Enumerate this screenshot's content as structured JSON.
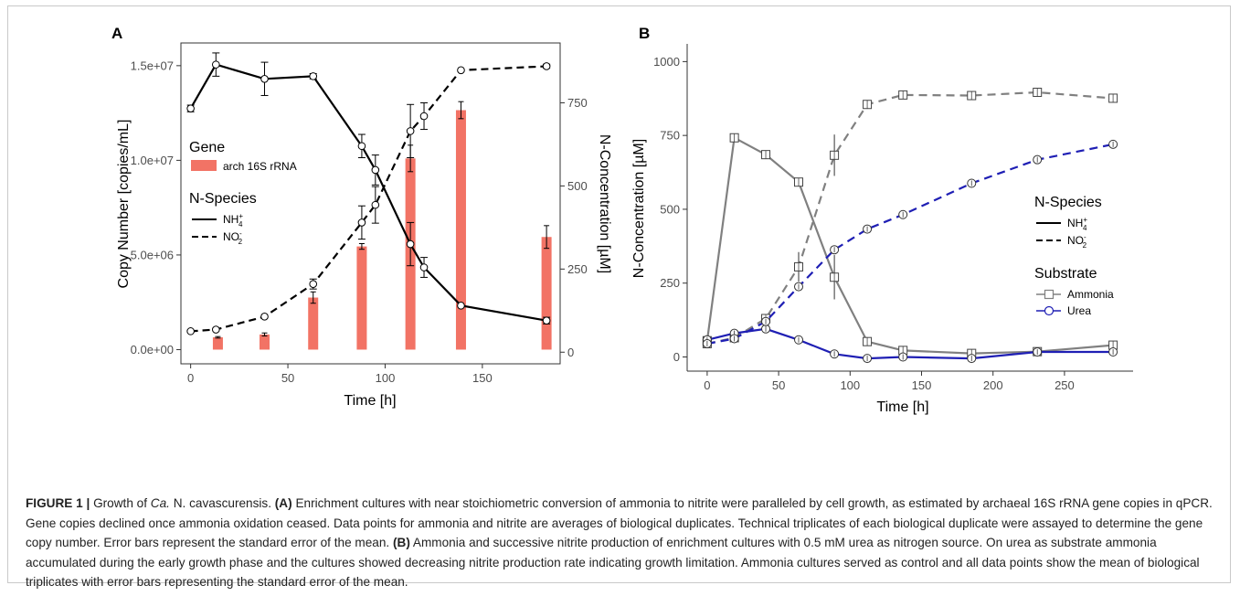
{
  "figure": {
    "caption": {
      "fig_label": "FIGURE 1 |",
      "title_pre": "Growth of ",
      "title_italic": "Ca.",
      "title_post": " N. cavascurensis.",
      "a_label": "(A)",
      "a_text": "Enrichment cultures with near stoichiometric conversion of ammonia to nitrite were paralleled by cell growth, as estimated by archaeal 16S rRNA gene copies in qPCR. Gene copies declined once ammonia oxidation ceased. Data points for ammonia and nitrite are averages of biological duplicates. Technical triplicates of each biological duplicate were assayed to determine the gene copy number. Error bars represent the standard error of the mean.",
      "b_label": "(B)",
      "b_text": "Ammonia and successive nitrite production of enrichment cultures with 0.5 mM urea as nitrogen source. On urea as substrate ammonia accumulated during the early growth phase and the cultures showed decreasing nitrite production rate indicating growth limitation. Ammonia cultures served as control and all data points show the mean of biological triplicates with error bars representing the standard error of the mean."
    }
  },
  "chart_data": [
    {
      "panel_label": "A",
      "type": "bar+line",
      "xlabel": "Time [h]",
      "ylabel_left": "Copy Number [copies/mL]",
      "ylabel_right": "N-Concentration [µM]",
      "xlim": [
        -5,
        190
      ],
      "ylim_left": [
        -750000,
        16200000
      ],
      "ylim_right": [
        -35,
        930
      ],
      "x_ticks": [
        0,
        50,
        100,
        150
      ],
      "y_left_ticks": [
        0,
        5000000,
        10000000,
        15000000
      ],
      "y_left_tick_labels": [
        "0.0e+00",
        "5.0e+06",
        "1.0e+07",
        "1.5e+07"
      ],
      "y_right_ticks": [
        0,
        250,
        500,
        750
      ],
      "legend_gene_title": "Gene",
      "legend_species_title": "N-Species",
      "bars": {
        "name": "arch 16S rRNA",
        "color": "#f27365",
        "x": [
          14,
          38,
          63,
          88,
          113,
          139,
          183
        ],
        "values": [
          650000,
          800000,
          2750000,
          5450000,
          10100000,
          12650000,
          5950000
        ],
        "err": [
          40000,
          80000,
          300000,
          150000,
          700000,
          450000,
          600000
        ]
      },
      "nh4": {
        "name": "NH4+",
        "x": [
          0,
          13,
          38,
          63,
          88,
          95,
          113,
          120,
          139,
          183
        ],
        "y": [
          733,
          865,
          822,
          830,
          620,
          548,
          325,
          255,
          140,
          95
        ],
        "err": [
          10,
          35,
          50,
          8,
          35,
          45,
          65,
          30,
          0,
          10
        ]
      },
      "no2": {
        "name": "NO2-",
        "x": [
          0,
          13,
          38,
          63,
          88,
          95,
          113,
          120,
          139,
          183
        ],
        "y": [
          63,
          68,
          107,
          205,
          390,
          443,
          665,
          710,
          848,
          860
        ],
        "err": [
          3,
          4,
          4,
          15,
          50,
          55,
          80,
          40,
          0,
          6
        ]
      }
    },
    {
      "panel_label": "B",
      "type": "line",
      "xlabel": "Time [h]",
      "ylabel": "N-Concentration [µM]",
      "xlim": [
        -14,
        298
      ],
      "ylim": [
        -48,
        1060
      ],
      "x_ticks": [
        0,
        50,
        100,
        150,
        200,
        250
      ],
      "y_ticks": [
        0,
        250,
        500,
        750,
        1000
      ],
      "legend_species_title": "N-Species",
      "legend_substrate_title": "Substrate",
      "colors": {
        "ammonia": "#808080",
        "urea": "#1f1fb4"
      },
      "series": [
        {
          "name": "Ammonia",
          "species": "NH4+",
          "x": [
            0,
            19,
            41,
            64,
            89,
            112,
            137,
            185,
            231,
            284
          ],
          "y": [
            55,
            742,
            685,
            592,
            270,
            52,
            22,
            12,
            18,
            40
          ],
          "err": [
            0,
            10,
            10,
            10,
            75,
            10,
            5,
            5,
            5,
            8
          ]
        },
        {
          "name": "Ammonia",
          "species": "NO2-",
          "x": [
            0,
            19,
            41,
            64,
            89,
            112,
            137,
            185,
            231,
            284
          ],
          "y": [
            45,
            65,
            130,
            305,
            683,
            855,
            887,
            885,
            896,
            876
          ],
          "err": [
            0,
            5,
            15,
            50,
            70,
            15,
            10,
            10,
            10,
            10
          ]
        },
        {
          "name": "Urea",
          "species": "NH4+",
          "x": [
            0,
            19,
            41,
            64,
            89,
            112,
            137,
            185,
            231,
            284
          ],
          "y": [
            58,
            80,
            95,
            58,
            10,
            -5,
            0,
            -5,
            17,
            17
          ],
          "err": [
            0,
            5,
            5,
            5,
            5,
            3,
            3,
            3,
            3,
            3
          ]
        },
        {
          "name": "Urea",
          "species": "NO2-",
          "x": [
            0,
            19,
            41,
            64,
            89,
            112,
            137,
            185,
            231,
            284
          ],
          "y": [
            45,
            62,
            120,
            238,
            363,
            433,
            482,
            588,
            668,
            720
          ],
          "err": [
            0,
            5,
            5,
            5,
            5,
            5,
            5,
            5,
            5,
            5
          ]
        }
      ]
    }
  ]
}
